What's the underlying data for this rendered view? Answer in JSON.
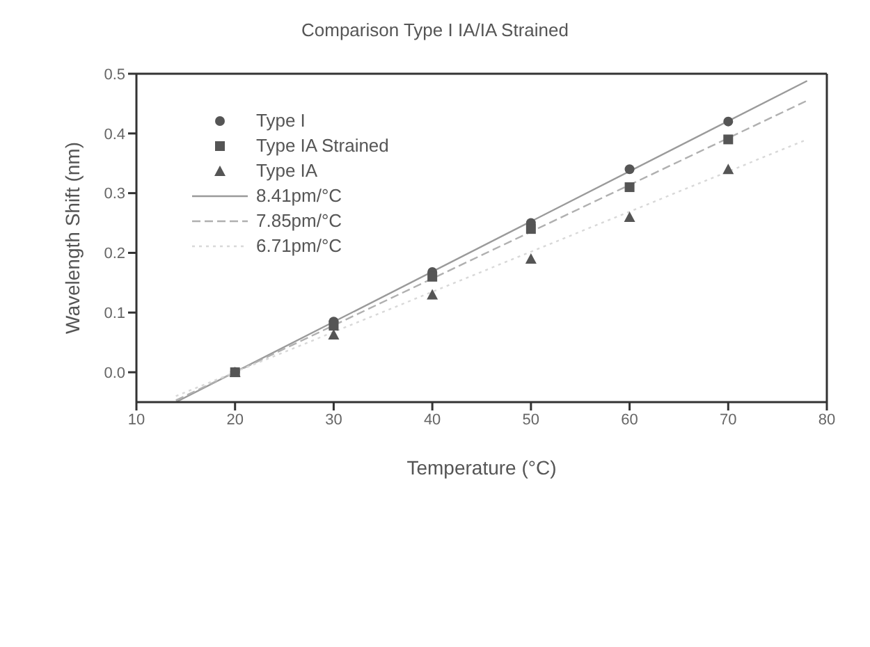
{
  "chart_data": {
    "type": "scatter",
    "title": "Comparison Type I IA/IA Strained",
    "xlabel": "Temperature (°C)",
    "ylabel": "Wavelength Shift (nm)",
    "xlim": [
      10,
      80
    ],
    "xticks": [
      10,
      20,
      30,
      40,
      50,
      60,
      70,
      80
    ],
    "ylim": [
      -0.05,
      0.5
    ],
    "yticks": [
      {
        "value": 0,
        "label": "0.0"
      },
      {
        "value": 0.1,
        "label": "0.1"
      },
      {
        "value": 0.2,
        "label": "0.2"
      },
      {
        "value": 0.3,
        "label": "0.3"
      },
      {
        "value": 0.4,
        "label": "0.4"
      },
      {
        "value": 0.5,
        "label": "0.5"
      }
    ],
    "grid": false,
    "legend": "top left",
    "series": [
      {
        "name": "Type I",
        "marker": "circle",
        "color": "#555555",
        "x": [
          20,
          30,
          40,
          50,
          60,
          70
        ],
        "values": [
          0.0,
          0.085,
          0.168,
          0.25,
          0.34,
          0.42
        ]
      },
      {
        "name": "Type IA Strained",
        "marker": "square",
        "color": "#555555",
        "x": [
          20,
          30,
          40,
          50,
          60,
          70
        ],
        "values": [
          0.0,
          0.078,
          0.16,
          0.24,
          0.31,
          0.39
        ]
      },
      {
        "name": "Type IA",
        "marker": "triangle",
        "color": "#555555",
        "x": [
          20,
          30,
          40,
          50,
          60,
          70
        ],
        "values": [
          0.0,
          0.063,
          0.13,
          0.19,
          0.26,
          0.34
        ]
      },
      {
        "name": "8.41pm/°C",
        "type": "line",
        "line_style": "solid",
        "marker": "none",
        "color": "#9a9a9a",
        "x": [
          14,
          78
        ],
        "values": [
          -0.05,
          0.488
        ]
      },
      {
        "name": "7.85pm/°C",
        "type": "line",
        "line_style": "dashed",
        "marker": "none",
        "color": "#b0b0b0",
        "x": [
          14,
          78
        ],
        "values": [
          -0.047,
          0.455
        ]
      },
      {
        "name": "6.71pm/°C",
        "type": "line",
        "line_style": "dotted",
        "marker": "none",
        "color": "#d8d8d8",
        "x": [
          14,
          78
        ],
        "values": [
          -0.04,
          0.39
        ]
      }
    ]
  }
}
